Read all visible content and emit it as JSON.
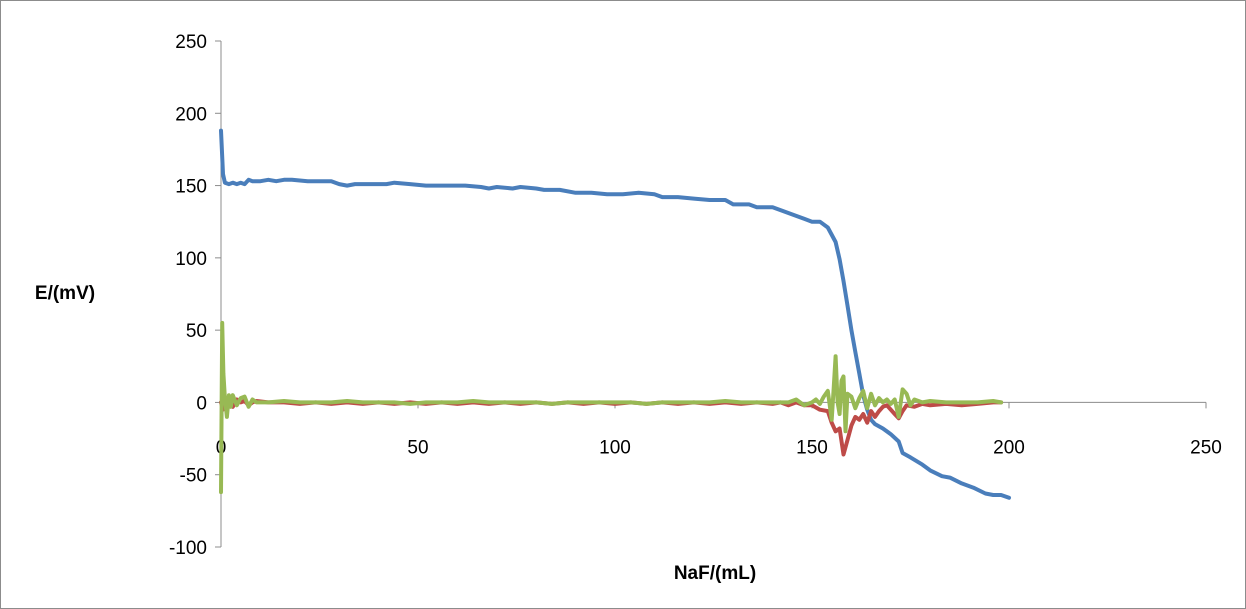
{
  "colors": {
    "series1": "#4a7ebb",
    "series2": "#be4b48",
    "series3": "#98b954",
    "axis": "#8c8c8c"
  },
  "chart_data": {
    "type": "line",
    "xlabel": "NaF/(mL)",
    "ylabel": "E/(mV)",
    "xlim": [
      0,
      250
    ],
    "ylim": [
      -100,
      250
    ],
    "xticks": [
      0,
      50,
      100,
      150,
      200,
      250
    ],
    "yticks": [
      -100,
      -50,
      0,
      50,
      100,
      150,
      200,
      250
    ],
    "grid": false,
    "legend": "none",
    "series": [
      {
        "color": "#4a7ebb",
        "points": [
          [
            0,
            188
          ],
          [
            0.5,
            158
          ],
          [
            1,
            152
          ],
          [
            2,
            151
          ],
          [
            3,
            152
          ],
          [
            4,
            151
          ],
          [
            5,
            152
          ],
          [
            6,
            151
          ],
          [
            7,
            154
          ],
          [
            8,
            153
          ],
          [
            10,
            153
          ],
          [
            12,
            154
          ],
          [
            14,
            153
          ],
          [
            16,
            154
          ],
          [
            18,
            154
          ],
          [
            22,
            153
          ],
          [
            26,
            153
          ],
          [
            28,
            153
          ],
          [
            30,
            151
          ],
          [
            32,
            150
          ],
          [
            34,
            151
          ],
          [
            38,
            151
          ],
          [
            42,
            151
          ],
          [
            44,
            152
          ],
          [
            48,
            151
          ],
          [
            52,
            150
          ],
          [
            56,
            150
          ],
          [
            60,
            150
          ],
          [
            62,
            150
          ],
          [
            66,
            149
          ],
          [
            68,
            148
          ],
          [
            70,
            149
          ],
          [
            74,
            148
          ],
          [
            76,
            149
          ],
          [
            80,
            148
          ],
          [
            82,
            147
          ],
          [
            86,
            147
          ],
          [
            90,
            145
          ],
          [
            94,
            145
          ],
          [
            98,
            144
          ],
          [
            102,
            144
          ],
          [
            106,
            145
          ],
          [
            110,
            144
          ],
          [
            112,
            142
          ],
          [
            116,
            142
          ],
          [
            120,
            141
          ],
          [
            124,
            140
          ],
          [
            128,
            140
          ],
          [
            130,
            137
          ],
          [
            134,
            137
          ],
          [
            136,
            135
          ],
          [
            140,
            135
          ],
          [
            142,
            133
          ],
          [
            146,
            129
          ],
          [
            148,
            127
          ],
          [
            150,
            125
          ],
          [
            152,
            125
          ],
          [
            154,
            121
          ],
          [
            156,
            111
          ],
          [
            157,
            99
          ],
          [
            158,
            84
          ],
          [
            159,
            67
          ],
          [
            160,
            50
          ],
          [
            161,
            35
          ],
          [
            162,
            20
          ],
          [
            163,
            5
          ],
          [
            164,
            -5
          ],
          [
            165,
            -12
          ],
          [
            166,
            -15
          ],
          [
            168,
            -18
          ],
          [
            170,
            -22
          ],
          [
            172,
            -27
          ],
          [
            173,
            -35
          ],
          [
            175,
            -38
          ],
          [
            178,
            -43
          ],
          [
            180,
            -47
          ],
          [
            183,
            -51
          ],
          [
            185,
            -52
          ],
          [
            188,
            -56
          ],
          [
            191,
            -59
          ],
          [
            194,
            -63
          ],
          [
            196,
            -64
          ],
          [
            198,
            -64
          ],
          [
            200,
            -66
          ]
        ]
      },
      {
        "color": "#be4b48",
        "points": [
          [
            0,
            0
          ],
          [
            0.5,
            -5
          ],
          [
            1,
            3
          ],
          [
            1.5,
            -3
          ],
          [
            2,
            2
          ],
          [
            3,
            -3
          ],
          [
            4,
            2
          ],
          [
            5,
            0
          ],
          [
            6,
            1
          ],
          [
            7,
            -2
          ],
          [
            8,
            0
          ],
          [
            9,
            1
          ],
          [
            12,
            0
          ],
          [
            16,
            0
          ],
          [
            20,
            -1
          ],
          [
            24,
            0
          ],
          [
            28,
            -1
          ],
          [
            32,
            0
          ],
          [
            36,
            -1
          ],
          [
            40,
            0
          ],
          [
            44,
            -1
          ],
          [
            48,
            0
          ],
          [
            52,
            -1
          ],
          [
            56,
            0
          ],
          [
            60,
            -1
          ],
          [
            64,
            0
          ],
          [
            68,
            -1
          ],
          [
            72,
            0
          ],
          [
            76,
            -1
          ],
          [
            80,
            0
          ],
          [
            84,
            -1
          ],
          [
            88,
            0
          ],
          [
            92,
            -1
          ],
          [
            96,
            0
          ],
          [
            100,
            -1
          ],
          [
            104,
            0
          ],
          [
            108,
            -1
          ],
          [
            112,
            0
          ],
          [
            116,
            -1
          ],
          [
            120,
            0
          ],
          [
            124,
            -1
          ],
          [
            128,
            0
          ],
          [
            132,
            -1
          ],
          [
            136,
            0
          ],
          [
            140,
            -1
          ],
          [
            142,
            0
          ],
          [
            144,
            -2
          ],
          [
            146,
            0
          ],
          [
            148,
            -2
          ],
          [
            150,
            -2
          ],
          [
            152,
            -5
          ],
          [
            154,
            -6
          ],
          [
            155,
            -14
          ],
          [
            156,
            -20
          ],
          [
            157,
            -18
          ],
          [
            158,
            -36
          ],
          [
            159,
            -26
          ],
          [
            160,
            -16
          ],
          [
            161,
            -10
          ],
          [
            162,
            -12
          ],
          [
            163,
            -8
          ],
          [
            164,
            -14
          ],
          [
            165,
            -6
          ],
          [
            166,
            -10
          ],
          [
            167,
            -6
          ],
          [
            168,
            -3
          ],
          [
            169,
            -2
          ],
          [
            170,
            -5
          ],
          [
            171,
            -8
          ],
          [
            172,
            -11
          ],
          [
            173,
            -6
          ],
          [
            174,
            -2
          ],
          [
            176,
            -3
          ],
          [
            178,
            -1
          ],
          [
            180,
            -2
          ],
          [
            184,
            -1
          ],
          [
            188,
            -2
          ],
          [
            192,
            -1
          ],
          [
            196,
            0
          ],
          [
            198,
            0
          ]
        ]
      },
      {
        "color": "#98b954",
        "points": [
          [
            0,
            -62
          ],
          [
            0.3,
            55
          ],
          [
            0.6,
            20
          ],
          [
            1,
            3
          ],
          [
            1.5,
            -10
          ],
          [
            2,
            5
          ],
          [
            2.5,
            -3
          ],
          [
            3,
            5
          ],
          [
            4,
            -2
          ],
          [
            5,
            3
          ],
          [
            6,
            4
          ],
          [
            7,
            -3
          ],
          [
            8,
            2
          ],
          [
            9,
            0
          ],
          [
            12,
            0
          ],
          [
            16,
            1
          ],
          [
            20,
            0
          ],
          [
            24,
            0
          ],
          [
            28,
            0
          ],
          [
            32,
            1
          ],
          [
            36,
            0
          ],
          [
            40,
            0
          ],
          [
            44,
            0
          ],
          [
            48,
            -1
          ],
          [
            52,
            0
          ],
          [
            56,
            0
          ],
          [
            60,
            0
          ],
          [
            64,
            1
          ],
          [
            68,
            0
          ],
          [
            72,
            0
          ],
          [
            76,
            0
          ],
          [
            80,
            0
          ],
          [
            84,
            -1
          ],
          [
            88,
            0
          ],
          [
            92,
            0
          ],
          [
            96,
            0
          ],
          [
            100,
            0
          ],
          [
            104,
            0
          ],
          [
            108,
            -1
          ],
          [
            112,
            0
          ],
          [
            116,
            0
          ],
          [
            120,
            0
          ],
          [
            124,
            0
          ],
          [
            128,
            1
          ],
          [
            132,
            0
          ],
          [
            136,
            0
          ],
          [
            140,
            0
          ],
          [
            144,
            0
          ],
          [
            146,
            2
          ],
          [
            148,
            -2
          ],
          [
            150,
            0
          ],
          [
            151,
            2
          ],
          [
            152,
            -1
          ],
          [
            153,
            4
          ],
          [
            154,
            8
          ],
          [
            155,
            -12
          ],
          [
            155.5,
            10
          ],
          [
            156,
            32
          ],
          [
            156.5,
            0
          ],
          [
            157,
            -8
          ],
          [
            157.5,
            15
          ],
          [
            158,
            18
          ],
          [
            158.5,
            -20
          ],
          [
            159,
            6
          ],
          [
            160,
            4
          ],
          [
            161,
            -4
          ],
          [
            162,
            3
          ],
          [
            163,
            8
          ],
          [
            164,
            -4
          ],
          [
            165,
            6
          ],
          [
            166,
            -2
          ],
          [
            167,
            3
          ],
          [
            168,
            0
          ],
          [
            169,
            2
          ],
          [
            170,
            -1
          ],
          [
            171,
            2
          ],
          [
            172,
            -10
          ],
          [
            173,
            9
          ],
          [
            174,
            6
          ],
          [
            175,
            -2
          ],
          [
            176,
            2
          ],
          [
            178,
            0
          ],
          [
            180,
            1
          ],
          [
            184,
            0
          ],
          [
            188,
            0
          ],
          [
            192,
            0
          ],
          [
            196,
            1
          ],
          [
            198,
            0
          ]
        ]
      }
    ]
  }
}
